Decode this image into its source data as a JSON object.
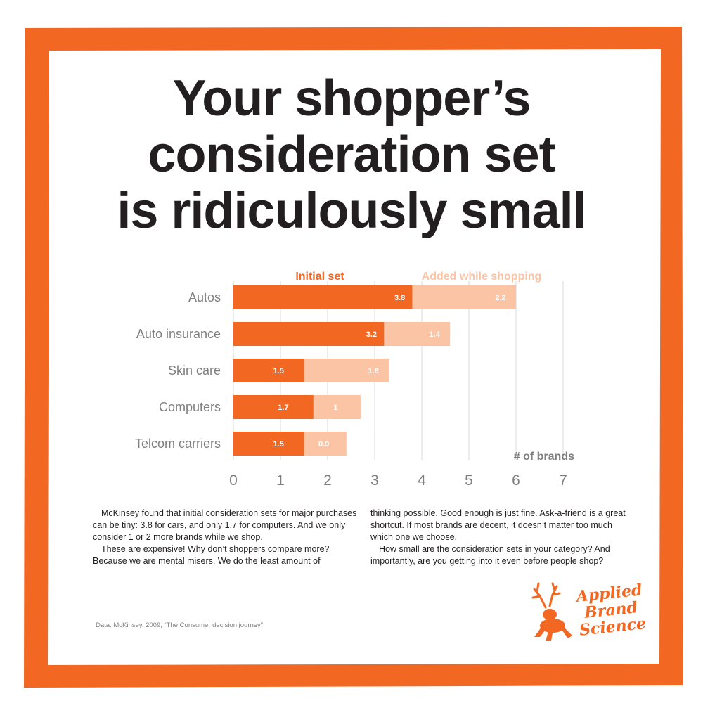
{
  "title": {
    "line1": "Your shopper’s",
    "line2": "consideration set",
    "line3": "is ridiculously small"
  },
  "colors": {
    "frame": "#f26722",
    "initial": "#f26722",
    "added": "#fbc4a5",
    "grid": "#d9d9d9",
    "label": "#7f7f7f",
    "title": "#231f20"
  },
  "chart_data": {
    "type": "bar",
    "orientation": "horizontal",
    "stacked": true,
    "categories": [
      "Autos",
      "Auto insurance",
      "Skin care",
      "Computers",
      "Telcom carriers"
    ],
    "series": [
      {
        "name": "Initial set",
        "values": [
          3.8,
          3.2,
          1.5,
          1.7,
          1.5
        ]
      },
      {
        "name": "Added while shopping",
        "values": [
          2.2,
          1.4,
          1.8,
          1,
          0.9
        ]
      }
    ],
    "xlabel": "# of brands",
    "xlim": [
      0,
      7
    ],
    "ticks": [
      "0",
      "1",
      "2",
      "3",
      "4",
      "5",
      "6",
      "7"
    ],
    "grid": true,
    "legend": "top"
  },
  "text": {
    "left": [
      "McKinsey found that initial consideration sets for major purchases can be tiny: 3.8 for cars, and only 1.7 for computers. And we only consider 1 or 2 more brands while we shop.",
      "These are expensive! Why don’t shoppers compare more? Because we are mental misers. We do the least amount of"
    ],
    "right": [
      "thinking possible. Good enough is just fine. Ask-a-friend is a great shortcut. If most brands are decent, it doesn’t matter too much which one we choose.",
      "How small are the consideration sets in your category? And importantly, are you getting into it even before people shop?"
    ]
  },
  "source": "Data: McKinsey, 2009, “The Consumer decision journey”",
  "logo": {
    "line1": "Applied",
    "line2": "Brand",
    "line3": "Science",
    "icon": "deer-frog-icon"
  }
}
